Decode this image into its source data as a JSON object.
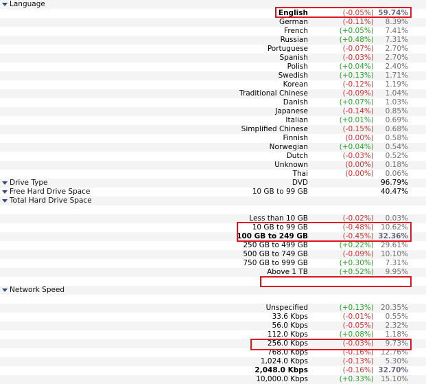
{
  "sections": [
    {
      "title": "Language",
      "rows": [
        {
          "label": "English",
          "change": "(-0.05%)",
          "pct": "59.74%",
          "dir": "neg",
          "bold": true,
          "highlight": true
        },
        {
          "label": "German",
          "change": "(-0.11%)",
          "pct": "8.39%",
          "dir": "neg"
        },
        {
          "label": "French",
          "change": "(+0.05%)",
          "pct": "7.41%",
          "dir": "pos"
        },
        {
          "label": "Russian",
          "change": "(+0.48%)",
          "pct": "7.31%",
          "dir": "pos"
        },
        {
          "label": "Portuguese",
          "change": "(-0.07%)",
          "pct": "2.70%",
          "dir": "neg"
        },
        {
          "label": "Spanish",
          "change": "(-0.03%)",
          "pct": "2.70%",
          "dir": "neg"
        },
        {
          "label": "Polish",
          "change": "(+0.04%)",
          "pct": "2.40%",
          "dir": "pos"
        },
        {
          "label": "Swedish",
          "change": "(+0.13%)",
          "pct": "1.71%",
          "dir": "pos"
        },
        {
          "label": "Korean",
          "change": "(-0.12%)",
          "pct": "1.19%",
          "dir": "neg"
        },
        {
          "label": "Traditional Chinese",
          "change": "(-0.09%)",
          "pct": "1.04%",
          "dir": "neg"
        },
        {
          "label": "Danish",
          "change": "(+0.07%)",
          "pct": "1.03%",
          "dir": "pos"
        },
        {
          "label": "Japanese",
          "change": "(-0.14%)",
          "pct": "0.85%",
          "dir": "neg"
        },
        {
          "label": "Italian",
          "change": "(+0.01%)",
          "pct": "0.69%",
          "dir": "pos"
        },
        {
          "label": "Simplified Chinese",
          "change": "(-0.15%)",
          "pct": "0.68%",
          "dir": "neg"
        },
        {
          "label": "Finnish",
          "change": "(0.00%)",
          "pct": "0.58%",
          "dir": "zero"
        },
        {
          "label": "Norwegian",
          "change": "(+0.04%)",
          "pct": "0.54%",
          "dir": "pos"
        },
        {
          "label": "Dutch",
          "change": "(-0.03%)",
          "pct": "0.52%",
          "dir": "neg"
        },
        {
          "label": "Unknown",
          "change": "(0.00%)",
          "pct": "0.18%",
          "dir": "zero"
        },
        {
          "label": "Thai",
          "change": "(0.00%)",
          "pct": "0.06%",
          "dir": "zero"
        }
      ]
    },
    {
      "title": "Drive Type",
      "inline": {
        "label": "DVD",
        "pct": "96.79%"
      },
      "rows": []
    },
    {
      "title": "Free Hard Drive Space",
      "inline": {
        "label": "10 GB to 99 GB",
        "pct": "40.47%"
      },
      "rows": []
    },
    {
      "title": "Total Hard Drive Space",
      "rows": [
        {
          "label": "",
          "change": "",
          "pct": "",
          "dir": "none",
          "blank": true
        },
        {
          "label": "Less than 10 GB",
          "change": "(-0.02%)",
          "pct": "0.03%",
          "dir": "neg"
        },
        {
          "label": "10 GB to 99 GB",
          "change": "(-0.48%)",
          "pct": "10.62%",
          "dir": "neg"
        },
        {
          "label": "100 GB to 249 GB",
          "change": "(-0.45%)",
          "pct": "32.36%",
          "dir": "neg",
          "bold": true,
          "highlight": true
        },
        {
          "label": "250 GB to 499 GB",
          "change": "(+0.22%)",
          "pct": "29.61%",
          "dir": "pos",
          "highlight": true
        },
        {
          "label": "500 GB to 749 GB",
          "change": "(-0.09%)",
          "pct": "10.10%",
          "dir": "neg"
        },
        {
          "label": "750 GB to 999 GB",
          "change": "(+0.30%)",
          "pct": "7.31%",
          "dir": "pos"
        },
        {
          "label": "Above 1 TB",
          "change": "(+0.52%)",
          "pct": "9.95%",
          "dir": "pos"
        },
        {
          "label": "",
          "change": "",
          "pct": "",
          "dir": "none",
          "blank": true
        }
      ]
    },
    {
      "title": "Network Speed",
      "rows": [
        {
          "label": "",
          "change": "",
          "pct": "",
          "dir": "none",
          "blank": true
        },
        {
          "label": "Unspecified",
          "change": "(+0.13%)",
          "pct": "20.35%",
          "dir": "pos",
          "highlight": true
        },
        {
          "label": "33.6 Kbps",
          "change": "(-0.01%)",
          "pct": "0.55%",
          "dir": "neg"
        },
        {
          "label": "56.0 Kbps",
          "change": "(-0.05%)",
          "pct": "2.32%",
          "dir": "neg"
        },
        {
          "label": "112.0 Kbps",
          "change": "(+0.08%)",
          "pct": "1.18%",
          "dir": "pos"
        },
        {
          "label": "256.0 Kbps",
          "change": "(-0.03%)",
          "pct": "9.73%",
          "dir": "neg"
        },
        {
          "label": "768.0 Kbps",
          "change": "(-0.16%)",
          "pct": "12.76%",
          "dir": "neg"
        },
        {
          "label": "1,024.0 Kbps",
          "change": "(-0.13%)",
          "pct": "5.30%",
          "dir": "neg"
        },
        {
          "label": "2,048.0 Kbps",
          "change": "(-0.16%)",
          "pct": "32.70%",
          "dir": "neg",
          "bold": true,
          "highlight": true
        },
        {
          "label": "10,000.0 Kbps",
          "change": "(+0.33%)",
          "pct": "15.10%",
          "dir": "pos"
        }
      ]
    }
  ]
}
